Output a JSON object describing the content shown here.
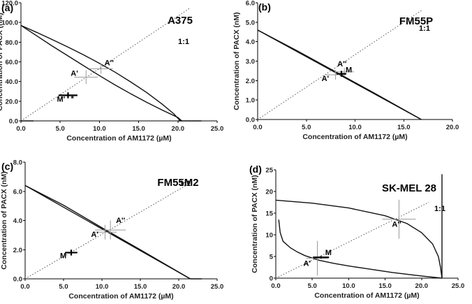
{
  "chart_data": [
    {
      "type": "line",
      "panel_label": "(a)",
      "title": "A375",
      "xlabel": "Concentration of AM1172 (µM)",
      "ylabel": "Concentration of PACX (nM)",
      "xlim": [
        0,
        25
      ],
      "ylim": [
        0,
        120
      ],
      "x_ticks": [
        "0.0",
        "5.0",
        "10.0",
        "15.0",
        "20.0",
        "25.0"
      ],
      "y_ticks": [
        "0.0",
        "20.0",
        "40.0",
        "60.0",
        "80.0",
        "100.0",
        "120.0"
      ],
      "grid": false,
      "diagonal": {
        "label": "1:1",
        "from": [
          0,
          0
        ],
        "to": [
          21.6,
          115
        ]
      },
      "series": [
        {
          "x": [
            0,
            2,
            4,
            6,
            8,
            10,
            12,
            14,
            16,
            18,
            20,
            20.5
          ],
          "y": [
            97,
            86.5,
            76,
            66,
            56,
            46,
            36.5,
            27.5,
            19,
            11,
            3.5,
            0
          ]
        },
        {
          "x": [
            0,
            2,
            4,
            6,
            8,
            10,
            12,
            14,
            16,
            18,
            19.5,
            20.3
          ],
          "y": [
            97,
            90,
            82.5,
            75,
            67,
            58.5,
            49.5,
            39.5,
            29,
            17,
            7,
            0
          ]
        },
        {
          "x": [
            0,
            1.6
          ],
          "y": [
            0,
            0
          ]
        },
        {
          "x": [
            20,
            23
          ],
          "y": [
            0,
            0
          ]
        }
      ],
      "points": [
        {
          "label": "A'",
          "x": 8.3,
          "y": 44.5,
          "xerr": 1.5,
          "yerr": 7
        },
        {
          "label": "A''",
          "x": 10.2,
          "y": 53,
          "xerr": 1.5,
          "yerr": 5
        },
        {
          "label": "M'",
          "x": 6.0,
          "y": 26,
          "xerr": 1.2,
          "yerr": 3,
          "marker": "bold"
        }
      ],
      "annotations": [
        "*"
      ]
    },
    {
      "type": "line",
      "panel_label": "(b)",
      "title": "FM55P",
      "xlabel": "Concentration of AM1172 (µM)",
      "ylabel": "Concentration of PACX (nM)",
      "xlim": [
        0,
        20
      ],
      "ylim": [
        0,
        6
      ],
      "x_ticks": [
        "0.0",
        "5.0",
        "10.0",
        "15.0",
        "20.0"
      ],
      "y_ticks": [
        "0.0",
        "1.0",
        "2.0",
        "3.0",
        "4.0",
        "5.0",
        "6.0"
      ],
      "grid": false,
      "diagonal": {
        "label": "1:1",
        "from": [
          0,
          0
        ],
        "to": [
          16.8,
          5.6
        ]
      },
      "series": [
        {
          "x": [
            0,
            16.8
          ],
          "y": [
            4.6,
            0
          ]
        },
        {
          "x": [
            0,
            4,
            8,
            12,
            16.8
          ],
          "y": [
            4.6,
            3.55,
            2.45,
            1.35,
            0
          ]
        }
      ],
      "points": [
        {
          "label": "A'",
          "x": 8.0,
          "y": 2.3,
          "xerr": 1.0,
          "yerr": 0.25
        },
        {
          "label": "A''",
          "x": 8.9,
          "y": 2.45,
          "xerr": 1.0,
          "yerr": 0.2
        },
        {
          "label": "M",
          "x": 8.6,
          "y": 2.35,
          "xerr": 0.5,
          "yerr": 0.15,
          "marker": "bold"
        }
      ]
    },
    {
      "type": "line",
      "panel_label": "(c)",
      "title": "FM55M2",
      "xlabel": "Concentration of AM1172 (µM)",
      "ylabel": "Concentration of PACX (nM)",
      "xlim": [
        0,
        25
      ],
      "ylim": [
        0,
        8
      ],
      "x_ticks": [
        "0.0",
        "5.0",
        "10.0",
        "15.0",
        "20.0",
        "25.0"
      ],
      "y_ticks": [
        "0.0",
        "2.0",
        "4.0",
        "6.0",
        "8.0"
      ],
      "grid": false,
      "diagonal": {
        "label": "1:1",
        "from": [
          0,
          0
        ],
        "to": [
          21.6,
          6.6
        ]
      },
      "series": [
        {
          "x": [
            0,
            21.5
          ],
          "y": [
            6.4,
            0
          ]
        },
        {
          "x": [
            0,
            5,
            10,
            15,
            21.5
          ],
          "y": [
            6.4,
            5.05,
            3.5,
            2.0,
            0
          ]
        },
        {
          "x": [
            21.5,
            23
          ],
          "y": [
            0,
            0
          ]
        }
      ],
      "points": [
        {
          "label": "A'",
          "x": 10.4,
          "y": 3.2,
          "xerr": 1.5,
          "yerr": 0.5
        },
        {
          "label": "A''",
          "x": 11.1,
          "y": 3.35,
          "xerr": 2.0,
          "yerr": 0.65
        },
        {
          "label": "M",
          "x": 6.0,
          "y": 1.8,
          "xerr": 0.8,
          "yerr": 0.2,
          "marker": "bold"
        }
      ]
    },
    {
      "type": "line",
      "panel_label": "(d)",
      "title": "SK-MEL 28",
      "xlabel": "Concentration of AM1172 (µM)",
      "ylabel": "Concentration of PACX (nM)",
      "xlim": [
        0,
        25
      ],
      "ylim": [
        0,
        25
      ],
      "x_ticks": [
        "0.0",
        "5.0",
        "10.0",
        "15.0",
        "20.0",
        "25.0"
      ],
      "y_ticks": [
        "0",
        "5",
        "10",
        "15",
        "20",
        "25"
      ],
      "grid": false,
      "diagonal": {
        "label": "1:1",
        "from": [
          0,
          0
        ],
        "to": [
          21.0,
          17.5
        ]
      },
      "series": [
        {
          "x": [
            0,
            5,
            10,
            15,
            18,
            20,
            21.5,
            22.3,
            22.6,
            22.8
          ],
          "y": [
            18,
            17.3,
            16.2,
            14.4,
            12.6,
            10.5,
            7.9,
            5,
            2.5,
            0
          ]
        },
        {
          "x": [
            22.8,
            22.8
          ],
          "y": [
            0,
            24
          ]
        },
        {
          "x": [
            0.4,
            0.6,
            1,
            2,
            3,
            4,
            6,
            8,
            10,
            12,
            14,
            16,
            18,
            20,
            22.8
          ],
          "y": [
            13.5,
            10.5,
            8.5,
            7,
            6,
            5.2,
            4.1,
            3.4,
            2.8,
            2.3,
            1.8,
            1.3,
            0.9,
            0.5,
            0
          ]
        }
      ],
      "points": [
        {
          "label": "A'",
          "x": 5.7,
          "y": 4.6,
          "xerr": 1.5,
          "yerr": 4
        },
        {
          "label": "A''",
          "x": 16.9,
          "y": 13.6,
          "xerr": 2.3,
          "yerr": 4.5
        },
        {
          "label": "M",
          "x": 6.2,
          "y": 4.8,
          "xerr": 1.1,
          "yerr": 0.3,
          "marker": "bold"
        }
      ]
    }
  ]
}
